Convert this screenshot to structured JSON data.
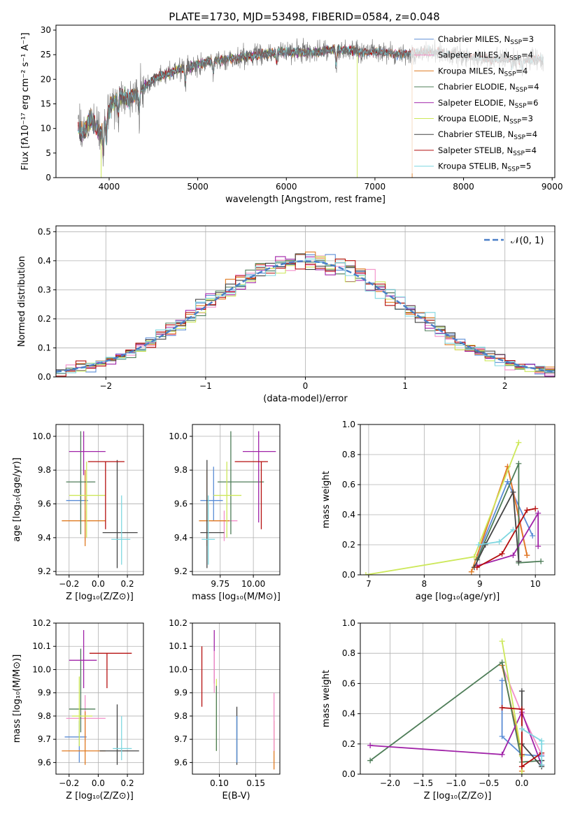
{
  "title": "PLATE=1730, MJD=53498, FIBERID=0584, z=0.048",
  "colors": {
    "Chabrier MILES": "#5b8dd6",
    "Salpeter MILES": "#f28ec8",
    "Kroupa MILES": "#e07b22",
    "Chabrier ELODIE": "#4e7d58",
    "Salpeter ELODIE": "#a023a8",
    "Kroupa ELODIE": "#cde85a",
    "Chabrier STELIB": "#444444",
    "Salpeter STELIB": "#b50f0f",
    "Kroupa STELIB": "#7fd7e0"
  },
  "chart_data": [
    {
      "id": "spectrum",
      "type": "line",
      "xlabel": "wavelength [Angstrom, rest frame]",
      "ylabel": "Flux [fλ10⁻¹⁷ erg cm⁻² s⁻¹ A⁻¹]",
      "xlim": [
        3400,
        9030
      ],
      "ylim": [
        0,
        31
      ],
      "xticks": [
        4000,
        5000,
        6000,
        7000,
        8000,
        9000
      ],
      "yticks": [
        0,
        5,
        10,
        15,
        20,
        25,
        30
      ],
      "legend_position": "upper-right",
      "observed_profile": {
        "x": [
          3650,
          3700,
          3800,
          3900,
          4000,
          4100,
          4200,
          4300,
          4500,
          4700,
          4900,
          5100,
          5300,
          5500,
          5700,
          5900,
          6100,
          6300,
          6500,
          6700,
          6900,
          7100,
          7300,
          7500,
          7700,
          7900,
          8100,
          8300,
          8500,
          8700,
          8900
        ],
        "y": [
          10,
          9,
          12,
          9,
          14,
          16.5,
          16,
          17,
          20,
          21.5,
          22.5,
          23.5,
          24,
          24.5,
          25,
          25.5,
          25.5,
          25.5,
          26,
          26,
          25.5,
          25.5,
          25,
          25.5,
          25.5,
          25,
          24.5,
          24,
          24,
          24,
          24
        ]
      },
      "series": [
        {
          "name": "Chabrier MILES",
          "n_ssp": "3",
          "x_end": 7420
        },
        {
          "name": "Salpeter MILES",
          "n_ssp": "4",
          "x_end": 7420
        },
        {
          "name": "Kroupa MILES",
          "n_ssp": "4",
          "x_end": 7420,
          "drop_to_zero_at": 7420
        },
        {
          "name": "Chabrier ELODIE",
          "n_ssp": "4",
          "x_end": 6800
        },
        {
          "name": "Salpeter ELODIE",
          "n_ssp": "6",
          "x_end": 6800
        },
        {
          "name": "Kroupa ELODIE",
          "n_ssp": "3",
          "x_end": 6800,
          "drop_to_zero_at": 6800,
          "drop_to_zero_at_start": 3910
        },
        {
          "name": "Chabrier STELIB",
          "n_ssp": "4",
          "x_end": 8900
        },
        {
          "name": "Salpeter STELIB",
          "n_ssp": "4",
          "x_end": 8900
        },
        {
          "name": "Kroupa STELIB",
          "n_ssp": "5",
          "x_end": 8900
        }
      ]
    },
    {
      "id": "residuals",
      "type": "line",
      "xlabel": "(data-model)/error",
      "ylabel": "Normed distribution",
      "xlim": [
        -2.5,
        2.5
      ],
      "ylim": [
        0,
        0.52
      ],
      "xticks": [
        -2,
        -1,
        0,
        1,
        2
      ],
      "yticks": [
        0.0,
        0.1,
        0.2,
        0.3,
        0.4,
        0.5
      ],
      "grid": true,
      "legend_position": "upper-right",
      "reference_curve": "𝒩(0, 1)",
      "bin_width": 0.1,
      "bin_start": -2.5
    },
    {
      "id": "age-vs-Z",
      "type": "scatter",
      "xlabel": "Z [log₁₀(Z/Z⊙)]",
      "ylabel": "age  [log₁₀(age/yr)]",
      "xlim": [
        -0.29,
        0.31
      ],
      "ylim": [
        9.18,
        10.07
      ],
      "xticks": [
        -0.2,
        0.0,
        0.2
      ],
      "yticks": [
        9.2,
        9.4,
        9.6,
        9.8,
        10.0
      ],
      "grid": true,
      "points": [
        {
          "series": "Chabrier MILES",
          "x": -0.12,
          "xerr": [
            0.1,
            0.05
          ],
          "y": 9.62,
          "yerr": [
            0.12,
            0.12
          ]
        },
        {
          "series": "Salpeter MILES",
          "x": -0.09,
          "xerr": [
            0.03,
            0.03
          ],
          "y": 9.5,
          "yerr": [
            0.12,
            0.06
          ]
        },
        {
          "series": "Kroupa MILES",
          "x": -0.09,
          "xerr": [
            0.16,
            0.14
          ],
          "y": 9.5,
          "yerr": [
            0.15,
            0.3
          ]
        },
        {
          "series": "Chabrier ELODIE",
          "x": -0.12,
          "xerr": [
            0.1,
            0.1
          ],
          "y": 9.73,
          "yerr": [
            0.31,
            0.3
          ]
        },
        {
          "series": "Salpeter ELODIE",
          "x": -0.1,
          "xerr": [
            0.1,
            0.15
          ],
          "y": 9.91,
          "yerr": [
            0.14,
            0.12
          ]
        },
        {
          "series": "Kroupa ELODIE",
          "x": -0.08,
          "xerr": [
            0.12,
            0.13
          ],
          "y": 9.65,
          "yerr": [
            0.25,
            0.2
          ]
        },
        {
          "series": "Chabrier STELIB",
          "x": 0.13,
          "xerr": [
            0.1,
            0.14
          ],
          "y": 9.43,
          "yerr": [
            0.21,
            0.43
          ]
        },
        {
          "series": "Salpeter STELIB",
          "x": 0.05,
          "xerr": [
            0.12,
            0.13
          ],
          "y": 9.85,
          "yerr": [
            0.4,
            0.0
          ]
        },
        {
          "series": "Kroupa STELIB",
          "x": 0.16,
          "xerr": [
            0.07,
            0.06
          ],
          "y": 9.39,
          "yerr": [
            0.15,
            0.26
          ]
        }
      ]
    },
    {
      "id": "age-vs-mass",
      "type": "scatter",
      "xlabel": "mass [log₁₀(M/M⊙)]",
      "ylabel": "",
      "xlim": [
        9.54,
        10.2
      ],
      "ylim": [
        9.18,
        10.07
      ],
      "xticks": [
        9.75,
        10.0
      ],
      "yticks": [
        9.2,
        9.4,
        9.6,
        9.8,
        10.0
      ],
      "grid": true,
      "points": [
        {
          "series": "Chabrier MILES",
          "x": 9.7,
          "xerr": [
            0.1,
            0.07
          ],
          "y": 9.62,
          "yerr": [
            0.12,
            0.2
          ]
        },
        {
          "series": "Salpeter MILES",
          "x": 9.78,
          "xerr": [
            0.1,
            0.1
          ],
          "y": 9.5,
          "yerr": [
            0.12,
            0.06
          ]
        },
        {
          "series": "Kroupa MILES",
          "x": 9.65,
          "xerr": [
            0.06,
            0.17
          ],
          "y": 9.5,
          "yerr": [
            0.15,
            0.3
          ]
        },
        {
          "series": "Chabrier ELODIE",
          "x": 9.83,
          "xerr": [
            0.1,
            0.25
          ],
          "y": 9.73,
          "yerr": [
            0.31,
            0.3
          ]
        },
        {
          "series": "Salpeter ELODIE",
          "x": 10.04,
          "xerr": [
            0.12,
            0.13
          ],
          "y": 9.91,
          "yerr": [
            0.42,
            0.12
          ]
        },
        {
          "series": "Kroupa ELODIE",
          "x": 9.8,
          "xerr": [
            0.1,
            0.11
          ],
          "y": 9.65,
          "yerr": [
            0.25,
            0.2
          ]
        },
        {
          "series": "Chabrier STELIB",
          "x": 9.65,
          "xerr": [
            0.05,
            0.13
          ],
          "y": 9.43,
          "yerr": [
            0.21,
            0.43
          ]
        },
        {
          "series": "Salpeter STELIB",
          "x": 10.06,
          "xerr": [
            0.2,
            0.05
          ],
          "y": 9.85,
          "yerr": [
            0.4,
            0.0
          ]
        },
        {
          "series": "Kroupa STELIB",
          "x": 9.66,
          "xerr": [
            0.05,
            0.05
          ],
          "y": 9.39,
          "yerr": [
            0.15,
            0.26
          ]
        }
      ]
    },
    {
      "id": "weight-vs-age",
      "type": "line",
      "xlabel": "age  [log₁₀(age/yr)]",
      "ylabel": "mass weight",
      "xlim": [
        6.85,
        10.35
      ],
      "ylim": [
        0,
        1
      ],
      "xticks": [
        7,
        8,
        9,
        10
      ],
      "yticks": [
        0.0,
        0.2,
        0.4,
        0.6,
        0.8,
        1.0
      ],
      "grid": true,
      "series": [
        {
          "name": "Chabrier MILES",
          "x": [
            8.95,
            9.5,
            9.95
          ],
          "y": [
            0.12,
            0.62,
            0.26
          ]
        },
        {
          "name": "Salpeter MILES",
          "x": [
            8.95,
            9.5,
            9.7,
            9.85
          ],
          "y": [
            0.12,
            0.72,
            0.4,
            0.13
          ]
        },
        {
          "name": "Kroupa MILES",
          "x": [
            8.85,
            9.5,
            9.85
          ],
          "y": [
            0.02,
            0.72,
            0.13
          ]
        },
        {
          "name": "Chabrier ELODIE",
          "x": [
            8.95,
            9.7,
            9.7,
            10.1
          ],
          "y": [
            0.1,
            0.74,
            0.08,
            0.09
          ]
        },
        {
          "name": "Salpeter ELODIE",
          "x": [
            8.95,
            9.6,
            10.05,
            10.05
          ],
          "y": [
            0.06,
            0.13,
            0.41,
            0.19
          ]
        },
        {
          "name": "Kroupa ELODIE",
          "x": [
            6.95,
            8.9,
            9.7
          ],
          "y": [
            0.0,
            0.12,
            0.88
          ]
        },
        {
          "name": "Chabrier STELIB",
          "x": [
            8.9,
            9.1,
            9.6,
            9.7
          ],
          "y": [
            0.05,
            0.2,
            0.55,
            0.09
          ]
        },
        {
          "name": "Salpeter STELIB",
          "x": [
            8.95,
            9.4,
            9.85,
            10.0
          ],
          "y": [
            0.05,
            0.14,
            0.43,
            0.44
          ]
        },
        {
          "name": "Kroupa STELIB",
          "x": [
            8.98,
            9.35,
            9.6
          ],
          "y": [
            0.2,
            0.22,
            0.3
          ]
        }
      ]
    },
    {
      "id": "mass-vs-Z",
      "type": "scatter",
      "xlabel": "Z [log₁₀(Z/Z⊙)]",
      "ylabel": "mass [log₁₀(M/M⊙)]",
      "xlim": [
        -0.29,
        0.31
      ],
      "ylim": [
        9.55,
        10.2
      ],
      "xticks": [
        -0.2,
        0.0,
        0.2
      ],
      "yticks": [
        9.6,
        9.7,
        9.8,
        9.9,
        10.0,
        10.1,
        10.2
      ],
      "grid": true,
      "points": [
        {
          "series": "Chabrier MILES",
          "x": -0.13,
          "xerr": [
            0.1,
            0.05
          ],
          "y": 9.71,
          "yerr": [
            0.11,
            0.07
          ]
        },
        {
          "series": "Salpeter MILES",
          "x": -0.09,
          "xerr": [
            0.13,
            0.14
          ],
          "y": 9.79,
          "yerr": [
            0.1,
            0.1
          ]
        },
        {
          "series": "Kroupa MILES",
          "x": -0.09,
          "xerr": [
            0.16,
            0.14
          ],
          "y": 9.65,
          "yerr": [
            0.06,
            0.17
          ]
        },
        {
          "series": "Chabrier ELODIE",
          "x": -0.12,
          "xerr": [
            0.08,
            0.1
          ],
          "y": 9.83,
          "yerr": [
            0.1,
            0.26
          ]
        },
        {
          "series": "Salpeter ELODIE",
          "x": -0.1,
          "xerr": [
            0.1,
            0.09
          ],
          "y": 10.04,
          "yerr": [
            0.12,
            0.13
          ]
        },
        {
          "series": "Kroupa ELODIE",
          "x": -0.13,
          "xerr": [
            0.05,
            0.09
          ],
          "y": 9.8,
          "yerr": [
            0.13,
            0.17
          ]
        },
        {
          "series": "Chabrier STELIB",
          "x": 0.13,
          "xerr": [
            0.12,
            0.15
          ],
          "y": 9.65,
          "yerr": [
            0.06,
            0.2
          ]
        },
        {
          "series": "Salpeter STELIB",
          "x": 0.06,
          "xerr": [
            0.12,
            0.17
          ],
          "y": 10.07,
          "yerr": [
            0.15,
            0.0
          ]
        },
        {
          "series": "Kroupa STELIB",
          "x": 0.16,
          "xerr": [
            0.06,
            0.07
          ],
          "y": 9.66,
          "yerr": [
            0.05,
            0.14
          ]
        }
      ]
    },
    {
      "id": "mass-vs-ebv",
      "type": "scatter",
      "xlabel": "E(B-V)",
      "ylabel": "",
      "xlim": [
        0.063,
        0.183
      ],
      "ylim": [
        9.55,
        10.2
      ],
      "xticks": [
        0.1,
        0.15
      ],
      "yticks": [
        9.6,
        9.7,
        9.8,
        9.9,
        10.0,
        10.1,
        10.2
      ],
      "grid": true,
      "points": [
        {
          "series": "Salpeter STELIB",
          "x": 0.076,
          "y": 9.97,
          "yerr": [
            0.13,
            0.13
          ]
        },
        {
          "series": "Salpeter ELODIE",
          "x": 0.093,
          "y": 10.04,
          "yerr": [
            0.1,
            0.13
          ]
        },
        {
          "series": "Salpeter MILES",
          "x": 0.093,
          "y": 9.98,
          "yerr": [
            0.08,
            0.1
          ]
        },
        {
          "series": "Kroupa ELODIE",
          "x": 0.096,
          "y": 9.8,
          "yerr": [
            0.15,
            0.16
          ]
        },
        {
          "series": "Chabrier ELODIE",
          "x": 0.096,
          "y": 9.83,
          "yerr": [
            0.18,
            0.1
          ]
        },
        {
          "series": "Kroupa STELIB",
          "x": 0.124,
          "y": 9.7,
          "yerr": [
            0.1,
            0.1
          ]
        },
        {
          "series": "Chabrier STELIB",
          "x": 0.124,
          "y": 9.72,
          "yerr": [
            0.13,
            0.12
          ]
        },
        {
          "series": "Chabrier MILES",
          "x": 0.124,
          "y": 9.7,
          "yerr": [
            0.1,
            0.1
          ]
        },
        {
          "series": "Kroupa MILES",
          "x": 0.175,
          "y": 9.68,
          "yerr": [
            0.11,
            0.1
          ]
        },
        {
          "series": "Salpeter MILES",
          "x": 0.175,
          "y": 9.75,
          "yerr": [
            0.1,
            0.15
          ]
        }
      ]
    },
    {
      "id": "weight-vs-Z",
      "type": "line",
      "xlabel": "Z [log₁₀(Z/Z⊙)]",
      "ylabel": "mass weight",
      "xlim": [
        -2.45,
        0.5
      ],
      "ylim": [
        0,
        1
      ],
      "xticks": [
        -2.0,
        -1.5,
        -1.0,
        -0.5,
        0.0
      ],
      "yticks": [
        0.0,
        0.2,
        0.4,
        0.6,
        0.8,
        1.0
      ],
      "grid": true,
      "series": [
        {
          "name": "Chabrier MILES",
          "x": [
            -0.3,
            -0.3,
            0.0,
            0.3
          ],
          "y": [
            0.62,
            0.25,
            0.13,
            0.12
          ]
        },
        {
          "name": "Salpeter MILES",
          "x": [
            -0.3,
            0.0,
            0.3
          ],
          "y": [
            0.72,
            0.4,
            0.13
          ]
        },
        {
          "name": "Kroupa MILES",
          "x": [
            -0.3,
            0.0,
            0.0
          ],
          "y": [
            0.72,
            0.13,
            0.02
          ]
        },
        {
          "name": "Chabrier ELODIE",
          "x": [
            -2.3,
            -0.3,
            0.0,
            0.3
          ],
          "y": [
            0.09,
            0.74,
            0.08,
            0.09
          ]
        },
        {
          "name": "Salpeter ELODIE",
          "x": [
            -2.3,
            -0.3,
            0.0,
            0.3
          ],
          "y": [
            0.19,
            0.13,
            0.41,
            0.06
          ]
        },
        {
          "name": "Kroupa ELODIE",
          "x": [
            -0.3,
            0.0,
            0.0
          ],
          "y": [
            0.88,
            0.12,
            0.0
          ]
        },
        {
          "name": "Chabrier STELIB",
          "x": [
            0.0,
            0.0,
            0.3,
            0.3
          ],
          "y": [
            0.55,
            0.2,
            0.05,
            0.09
          ]
        },
        {
          "name": "Salpeter STELIB",
          "x": [
            -0.3,
            0.0,
            0.0,
            0.3
          ],
          "y": [
            0.44,
            0.43,
            0.05,
            0.14
          ]
        },
        {
          "name": "Kroupa STELIB",
          "x": [
            0.0,
            0.3,
            0.3,
            0.3
          ],
          "y": [
            0.3,
            0.22,
            0.2,
            0.06
          ]
        }
      ]
    }
  ]
}
